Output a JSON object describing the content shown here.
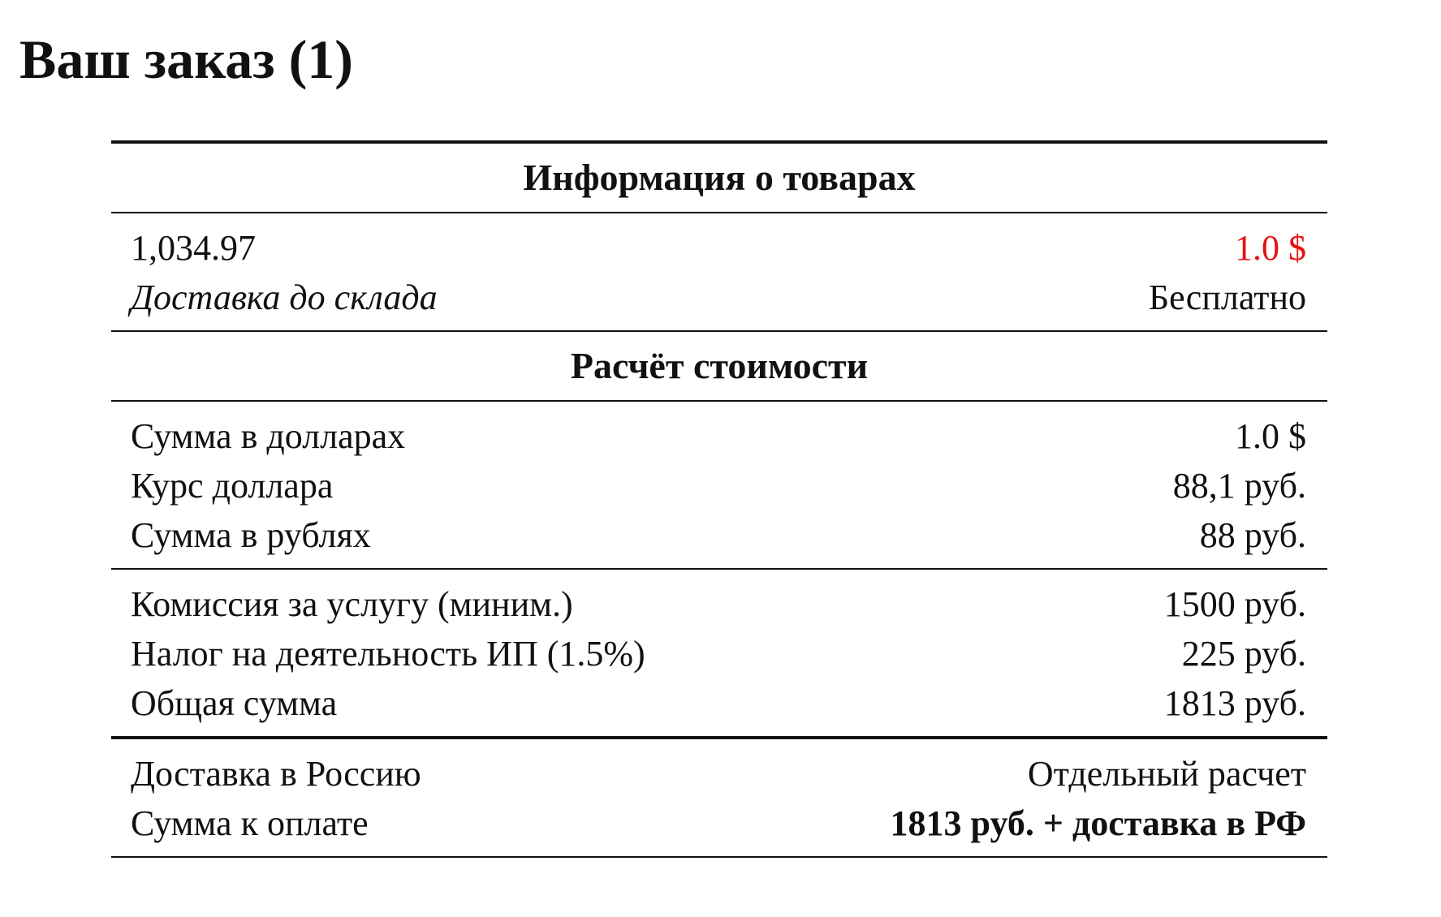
{
  "title": "Ваш заказ (1)",
  "products_section": {
    "heading": "Информация о товарах",
    "item_price_label": "1,034.97",
    "item_price_value": "1.0 $",
    "warehouse_delivery_label": "Доставка до склада",
    "warehouse_delivery_value": "Бесплатно"
  },
  "calc_section": {
    "heading": "Расчёт стоимости",
    "rows": [
      {
        "label": "Сумма в долларах",
        "value": "1.0 $"
      },
      {
        "label": "Курс доллара",
        "value": "88,1 руб."
      },
      {
        "label": "Сумма в рублях",
        "value": "88 руб."
      },
      {
        "label": "Комиссия за услугу (миним.)",
        "value": "1500 руб."
      },
      {
        "label": "Налог на деятельность ИП (1.5%)",
        "value": "225 руб."
      },
      {
        "label": "Общая сумма",
        "value": "1813 руб."
      }
    ]
  },
  "final": {
    "russia_delivery_label": "Доставка в Россию",
    "russia_delivery_value": "Отдельный расчет",
    "to_pay_label": "Сумма к оплате",
    "to_pay_value": "1813 руб. + доставка в РФ"
  },
  "colors": {
    "accent_price": "#e8110f"
  }
}
